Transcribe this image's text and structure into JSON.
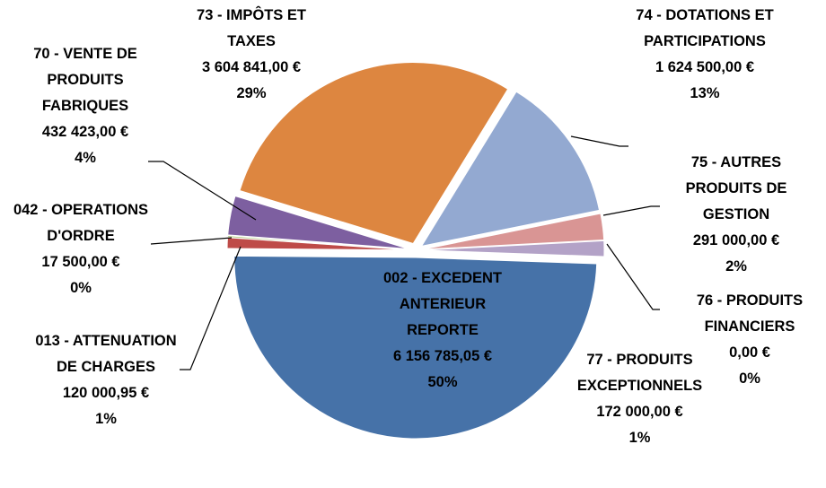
{
  "chart_data": {
    "type": "pie",
    "categories": [
      "002 - EXCEDENT ANTERIEUR REPORTE",
      "013 - ATTENUATION DE CHARGES",
      "042 - OPERATIONS D'ORDRE",
      "70 - VENTE DE PRODUITS FABRIQUES",
      "73 - IMPÔTS ET TAXES",
      "74 - DOTATIONS ET PARTICIPATIONS",
      "75 - AUTRES PRODUITS DE GESTION",
      "76 - PRODUITS FINANCIERS",
      "77 - PRODUITS EXCEPTIONNELS"
    ],
    "values": [
      6156785.05,
      120000.95,
      17500.0,
      432423.0,
      3604841.0,
      1624500.0,
      291000.0,
      0,
      172000.0
    ],
    "value_labels": [
      "6 156 785,05 €",
      "120 000,95 €",
      "17 500,00 €",
      "432 423,00 €",
      "3 604 841,00 €",
      "1 624 500,00 €",
      "291 000,00 €",
      "0,00 €",
      "172 000,00 €"
    ],
    "percents": [
      50,
      1,
      0,
      4,
      29,
      13,
      2,
      0,
      1
    ],
    "percent_labels": [
      "50%",
      "1%",
      "0%",
      "4%",
      "29%",
      "13%",
      "2%",
      "0%",
      "1%"
    ],
    "colors": [
      "#4672a8",
      "#be4b48",
      "#98b954",
      "#7d5fa0",
      "#dd8640",
      "#93a9d1",
      "#d99594",
      "#b8cce4",
      "#b3a2c7"
    ]
  }
}
